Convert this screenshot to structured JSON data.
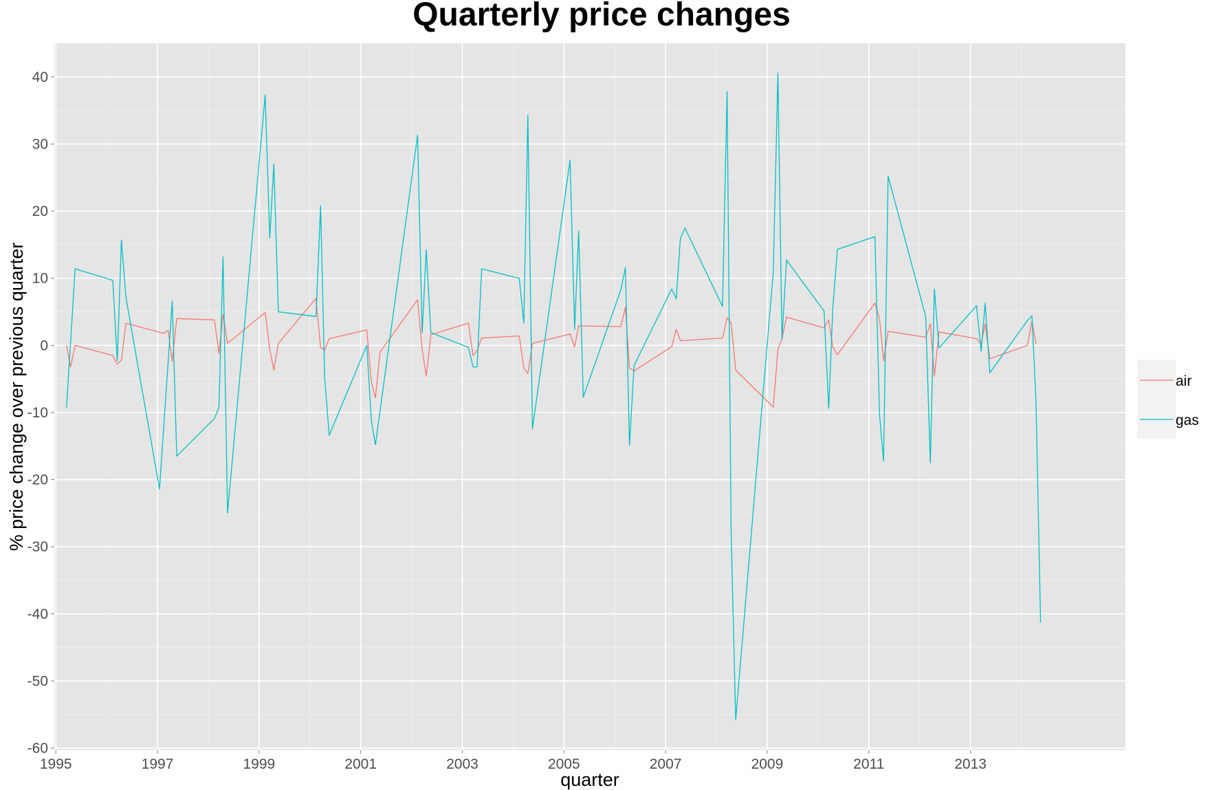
{
  "chart_data": {
    "type": "line",
    "title": "Quarterly price changes",
    "xlabel": "quarter",
    "ylabel": "% price change over previous quarter",
    "xlim": [
      1994.97,
      2016.05
    ],
    "ylim": [
      -60.3,
      45
    ],
    "x_ticks": [
      1995,
      1997,
      1999,
      2001,
      2003,
      2005,
      2007,
      2009,
      2011,
      2013
    ],
    "y_ticks": [
      -60,
      -50,
      -40,
      -30,
      -20,
      -10,
      0,
      10,
      20,
      30,
      40
    ],
    "x_tick_labels": [
      "1995",
      "1997",
      "1999",
      "2001",
      "2003",
      "2005",
      "2007",
      "2009",
      "2011",
      "2013"
    ],
    "y_tick_labels": [
      "-60",
      "-50",
      "-40",
      "-30",
      "-20",
      "-10",
      "0",
      "10",
      "20",
      "30",
      "40"
    ],
    "grid": true,
    "legend_position": "right",
    "series": [
      {
        "name": "air",
        "color": "#F8766D",
        "points": [
          [
            1995.21,
            0.0
          ],
          [
            1995.29,
            -3.2
          ],
          [
            1995.38,
            0.0
          ],
          [
            1996.12,
            -1.5
          ],
          [
            1996.21,
            -2.8
          ],
          [
            1996.29,
            -2.2
          ],
          [
            1996.38,
            3.3
          ],
          [
            1997.12,
            1.8
          ],
          [
            1997.21,
            2.2
          ],
          [
            1997.29,
            -2.4
          ],
          [
            1997.38,
            4.0
          ],
          [
            1998.12,
            3.8
          ],
          [
            1998.21,
            -1.2
          ],
          [
            1998.29,
            4.6
          ],
          [
            1998.38,
            0.3
          ],
          [
            1999.12,
            4.9
          ],
          [
            1999.21,
            -0.6
          ],
          [
            1999.29,
            -3.7
          ],
          [
            1999.38,
            0.3
          ],
          [
            2000.12,
            7.0
          ],
          [
            2000.21,
            -0.3
          ],
          [
            2000.29,
            -0.7
          ],
          [
            2000.38,
            1.0
          ],
          [
            2001.12,
            2.3
          ],
          [
            2001.21,
            -5.5
          ],
          [
            2001.29,
            -7.8
          ],
          [
            2001.38,
            -1.0
          ],
          [
            2002.12,
            6.8
          ],
          [
            2002.21,
            -0.6
          ],
          [
            2002.29,
            -4.6
          ],
          [
            2002.38,
            1.6
          ],
          [
            2003.12,
            3.3
          ],
          [
            2003.21,
            -1.5
          ],
          [
            2003.29,
            -0.8
          ],
          [
            2003.38,
            1.1
          ],
          [
            2004.12,
            1.4
          ],
          [
            2004.21,
            -3.4
          ],
          [
            2004.29,
            -4.2
          ],
          [
            2004.38,
            0.3
          ],
          [
            2005.12,
            1.7
          ],
          [
            2005.21,
            -0.2
          ],
          [
            2005.29,
            2.9
          ],
          [
            2006.12,
            2.8
          ],
          [
            2006.21,
            5.7
          ],
          [
            2006.29,
            -3.4
          ],
          [
            2006.38,
            -3.8
          ],
          [
            2007.12,
            -0.2
          ],
          [
            2007.21,
            2.4
          ],
          [
            2007.29,
            0.7
          ],
          [
            2008.12,
            1.1
          ],
          [
            2008.21,
            4.1
          ],
          [
            2008.29,
            3.3
          ],
          [
            2008.38,
            -3.7
          ],
          [
            2009.12,
            -9.2
          ],
          [
            2009.21,
            -0.6
          ],
          [
            2009.29,
            1.0
          ],
          [
            2009.38,
            4.2
          ],
          [
            2010.12,
            2.6
          ],
          [
            2010.21,
            3.8
          ],
          [
            2010.29,
            -0.2
          ],
          [
            2010.38,
            -1.4
          ],
          [
            2011.12,
            6.3
          ],
          [
            2011.21,
            4.0
          ],
          [
            2011.29,
            -2.3
          ],
          [
            2011.38,
            2.1
          ],
          [
            2012.12,
            1.2
          ],
          [
            2012.21,
            3.2
          ],
          [
            2012.29,
            -4.6
          ],
          [
            2012.38,
            2.0
          ],
          [
            2013.12,
            1.0
          ],
          [
            2013.21,
            0.2
          ],
          [
            2013.29,
            3.2
          ],
          [
            2013.38,
            -2.0
          ],
          [
            2014.12,
            0.0
          ],
          [
            2014.21,
            3.6
          ],
          [
            2014.29,
            0.2
          ]
        ]
      },
      {
        "name": "gas",
        "color": "#00BFC4",
        "points": [
          [
            1995.21,
            -9.3
          ],
          [
            1995.38,
            11.4
          ],
          [
            1996.12,
            9.7
          ],
          [
            1996.21,
            -2.3
          ],
          [
            1996.29,
            15.7
          ],
          [
            1996.38,
            7.1
          ],
          [
            1997.04,
            -21.4
          ],
          [
            1997.21,
            -2.4
          ],
          [
            1997.29,
            6.6
          ],
          [
            1997.38,
            -16.5
          ],
          [
            1998.12,
            -10.9
          ],
          [
            1998.21,
            -9.2
          ],
          [
            1998.29,
            13.2
          ],
          [
            1998.38,
            -25.0
          ],
          [
            1999.12,
            37.3
          ],
          [
            1999.21,
            16.0
          ],
          [
            1999.29,
            27.0
          ],
          [
            1999.38,
            5.0
          ],
          [
            2000.12,
            4.3
          ],
          [
            2000.21,
            20.8
          ],
          [
            2000.29,
            -4.7
          ],
          [
            2000.38,
            -13.4
          ],
          [
            2001.12,
            0.0
          ],
          [
            2001.21,
            -11.3
          ],
          [
            2001.29,
            -14.8
          ],
          [
            2002.12,
            31.3
          ],
          [
            2002.21,
            1.9
          ],
          [
            2002.29,
            14.2
          ],
          [
            2002.38,
            1.9
          ],
          [
            2003.12,
            -0.3
          ],
          [
            2003.21,
            -3.2
          ],
          [
            2003.29,
            -3.2
          ],
          [
            2003.38,
            11.4
          ],
          [
            2004.12,
            10.0
          ],
          [
            2004.21,
            3.3
          ],
          [
            2004.29,
            34.3
          ],
          [
            2004.38,
            -12.4
          ],
          [
            2005.12,
            27.6
          ],
          [
            2005.21,
            2.4
          ],
          [
            2005.29,
            17.0
          ],
          [
            2005.38,
            -7.7
          ],
          [
            2006.12,
            8.3
          ],
          [
            2006.21,
            11.6
          ],
          [
            2006.29,
            -14.9
          ],
          [
            2006.38,
            -3.0
          ],
          [
            2007.12,
            8.4
          ],
          [
            2007.21,
            6.9
          ],
          [
            2007.29,
            15.9
          ],
          [
            2007.38,
            17.5
          ],
          [
            2008.12,
            5.8
          ],
          [
            2008.21,
            37.8
          ],
          [
            2008.29,
            -28.0
          ],
          [
            2008.38,
            -55.8
          ],
          [
            2009.12,
            11.0
          ],
          [
            2009.21,
            40.6
          ],
          [
            2009.29,
            0.9
          ],
          [
            2009.38,
            12.7
          ],
          [
            2010.12,
            5.1
          ],
          [
            2010.21,
            -9.4
          ],
          [
            2010.29,
            5.4
          ],
          [
            2010.38,
            14.3
          ],
          [
            2011.12,
            16.2
          ],
          [
            2011.21,
            -10.3
          ],
          [
            2011.29,
            -17.2
          ],
          [
            2011.38,
            25.2
          ],
          [
            2012.12,
            4.3
          ],
          [
            2012.21,
            -17.5
          ],
          [
            2012.29,
            8.4
          ],
          [
            2012.38,
            -0.4
          ],
          [
            2013.12,
            5.9
          ],
          [
            2013.21,
            -0.9
          ],
          [
            2013.29,
            6.3
          ],
          [
            2013.38,
            -4.1
          ],
          [
            2014.12,
            3.7
          ],
          [
            2014.21,
            4.4
          ],
          [
            2014.29,
            -8.3
          ],
          [
            2014.38,
            -41.3
          ]
        ]
      }
    ]
  }
}
